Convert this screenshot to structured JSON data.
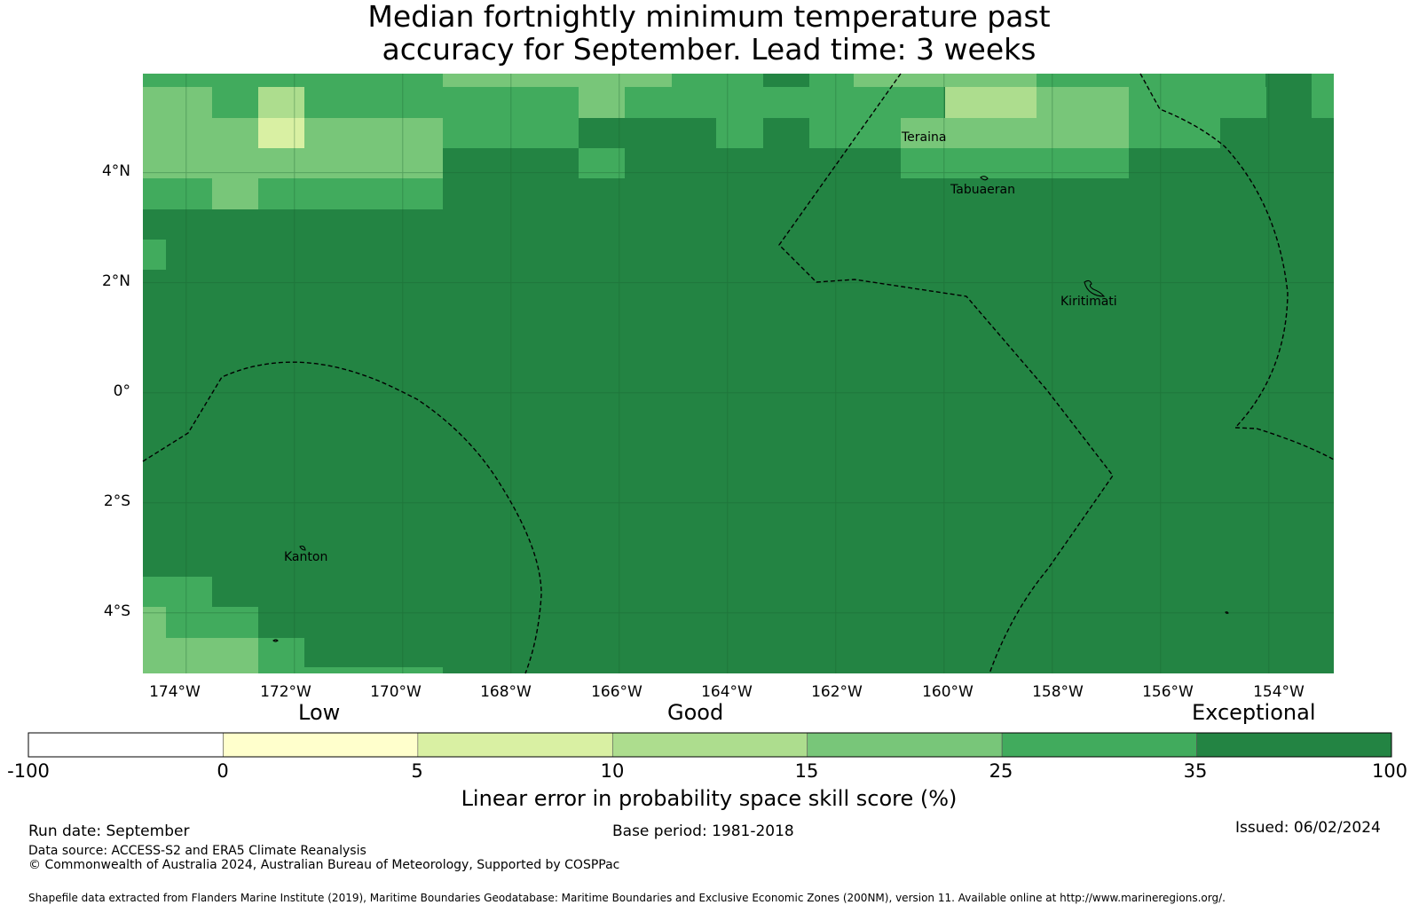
{
  "title": {
    "line1": "Median fortnightly minimum temperature past",
    "line2": "accuracy for September. Lead time: 3 weeks"
  },
  "map": {
    "lon_range": [
      -174.8,
      -152.8
    ],
    "lat_range": [
      -5.1,
      5.8
    ],
    "lat_ticks": [
      "4°N",
      "2°N",
      "0°",
      "2°S",
      "4°S"
    ],
    "lat_values": [
      4,
      2,
      0,
      -2,
      -4
    ],
    "lon_ticks": [
      "174°W",
      "172°W",
      "170°W",
      "168°W",
      "166°W",
      "164°W",
      "162°W",
      "160°W",
      "158°W",
      "156°W",
      "154°W"
    ],
    "lon_values": [
      -174,
      -172,
      -170,
      -168,
      -166,
      -164,
      -162,
      -160,
      -158,
      -156,
      -154
    ],
    "places": [
      {
        "name": "Teraina",
        "lon": -160.4,
        "lat": 4.7
      },
      {
        "name": "Tabuaeran",
        "lon": -159.3,
        "lat": 3.85
      },
      {
        "name": "Kiritimati",
        "lon": -157.4,
        "lat": 1.85
      },
      {
        "name": "Kanton",
        "lon": -171.7,
        "lat": -2.8
      }
    ]
  },
  "legend": {
    "categories": [
      "Low",
      "Good",
      "Exceptional"
    ],
    "ticks": [
      "-100",
      "0",
      "5",
      "10",
      "15",
      "25",
      "35",
      "100"
    ],
    "colors": [
      "#ffffff",
      "#ffffcc",
      "#d9f0a3",
      "#addd8e",
      "#78c679",
      "#41ab5d",
      "#238443"
    ],
    "title": "Linear error in probability space skill score (%)"
  },
  "footer": {
    "run_date": "Run date: September",
    "base_period": "Base period: 1981-2018",
    "issued": "Issued: 06/02/2024",
    "data_source": "Data source: ACCESS-S2 and ERA5 Climate Reanalysis",
    "copyright": "© Commonwealth of Australia 2024, Australian Bureau of Meteorology, Supported by COSPPac",
    "shapefile": "Shapefile data extracted from Flanders Marine Institute (2019), Maritime Boundaries Geodatabase: Maritime Boundaries and Exclusive Economic Zones (200NM), version 11. Available online at http://www.marineregions.org/."
  }
}
